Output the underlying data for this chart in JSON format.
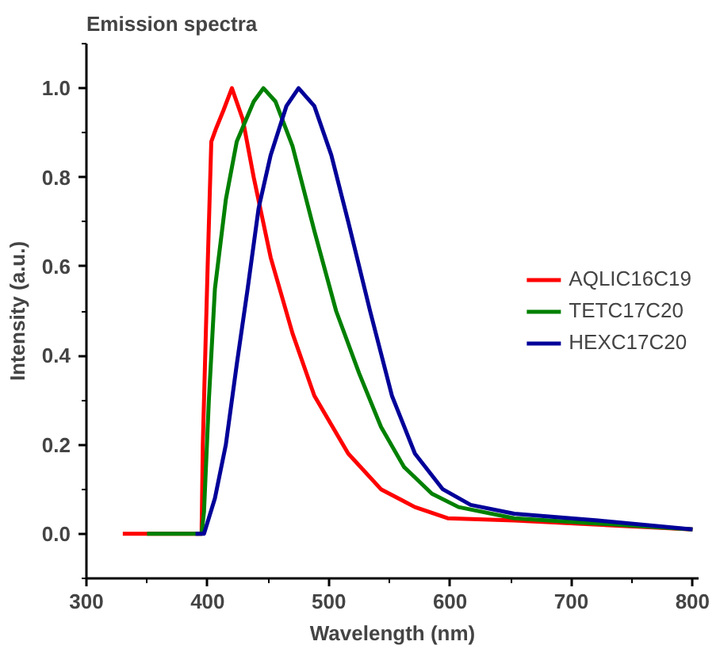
{
  "chart_data": {
    "type": "line",
    "title": "Emission spectra",
    "xlabel": "Wavelength (nm)",
    "ylabel": "Intensity (a.u.)",
    "xlim": [
      300,
      805
    ],
    "ylim": [
      -0.1,
      1.1
    ],
    "xticks": [
      300,
      {
        "value": 350,
        "label": null
      },
      400,
      {
        "value": 450,
        "label": null
      },
      500,
      {
        "value": 550,
        "label": null
      },
      600,
      {
        "value": 650,
        "label": null
      },
      700,
      {
        "value": 750,
        "label": null
      },
      800
    ],
    "yticks": [
      {
        "value": -0.1,
        "label": null
      },
      {
        "value": 0,
        "label": "0.0"
      },
      {
        "value": 0.1,
        "label": null
      },
      0.2,
      {
        "value": 0.3,
        "label": null
      },
      0.4,
      {
        "value": 0.5,
        "label": null
      },
      0.6,
      {
        "value": 0.7,
        "label": null
      },
      0.8,
      {
        "value": 0.9,
        "label": null
      },
      {
        "value": 1,
        "label": "1.0"
      },
      {
        "value": 1.1,
        "label": null
      }
    ],
    "grid": false,
    "legend": "right",
    "line_style": "solid",
    "marker": "none",
    "series": [
      {
        "name": "AQLIC16C19",
        "color": "#ff0000",
        "x": [
          330,
          395,
          396,
          400,
          403,
          407,
          413,
          420,
          429,
          438,
          452,
          470,
          488,
          516,
          543,
          571,
          598,
          653,
          800
        ],
        "values": [
          0,
          0,
          0.2,
          0.6,
          0.88,
          0.91,
          0.95,
          1.0,
          0.93,
          0.8,
          0.62,
          0.45,
          0.31,
          0.18,
          0.1,
          0.06,
          0.035,
          0.03,
          0.01
        ]
      },
      {
        "name": "TETC17C20",
        "color": "#008000",
        "x": [
          350,
          395,
          397,
          401,
          406,
          415,
          424,
          438,
          446,
          456,
          470,
          488,
          506,
          525,
          543,
          562,
          585,
          607,
          653,
          800
        ],
        "values": [
          0,
          0,
          0.05,
          0.3,
          0.55,
          0.75,
          0.88,
          0.97,
          1.0,
          0.97,
          0.87,
          0.68,
          0.5,
          0.36,
          0.24,
          0.15,
          0.09,
          0.06,
          0.035,
          0.01
        ]
      },
      {
        "name": "HEXC17C20",
        "color": "#000099",
        "x": [
          390,
          397,
          406,
          415,
          424,
          433,
          442,
          452,
          465,
          475,
          488,
          502,
          516,
          534,
          552,
          571,
          594,
          617,
          653,
          722,
          800
        ],
        "values": [
          0,
          0,
          0.08,
          0.2,
          0.38,
          0.55,
          0.73,
          0.85,
          0.96,
          1.0,
          0.96,
          0.85,
          0.7,
          0.5,
          0.31,
          0.18,
          0.1,
          0.065,
          0.045,
          0.03,
          0.01
        ]
      }
    ]
  }
}
